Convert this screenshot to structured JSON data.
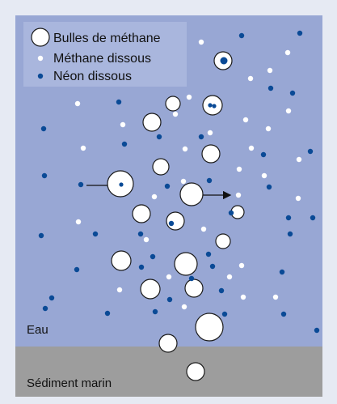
{
  "legend": {
    "bubbles_label": "Bulles de méthane",
    "dissolved_methane_label": "Méthane dissous",
    "dissolved_neon_label": "Néon dissous"
  },
  "zones": {
    "water_label": "Eau",
    "sediment_label": "Sédiment marin"
  },
  "colors": {
    "water": "#98a7d4",
    "sediment": "#9d9d9d",
    "legend_box": "#a9b6dd",
    "neon_dot": "#0a4a96",
    "methane_dot": "#ffffff",
    "bubble_stroke": "#1a1a1a",
    "frame": "#e6eaf3"
  }
}
